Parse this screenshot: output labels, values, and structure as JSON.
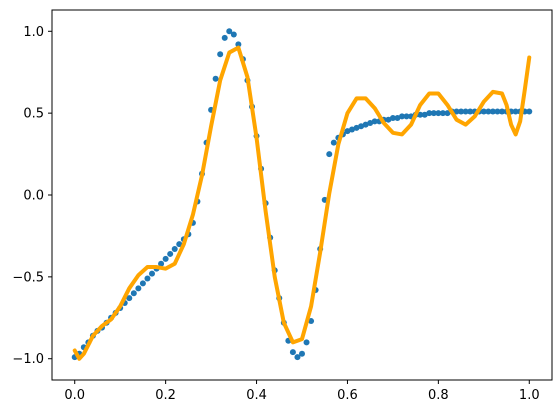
{
  "chart_data": {
    "type": "scatter",
    "title": "",
    "xlabel": "",
    "ylabel": "",
    "xlim": [
      -0.05,
      1.05
    ],
    "ylim": [
      -1.13,
      1.13
    ],
    "grid": false,
    "legend": "none",
    "x_ticks": [
      0.0,
      0.2,
      0.4,
      0.6,
      0.8,
      1.0
    ],
    "x_tick_labels": [
      "0.0",
      "0.2",
      "0.4",
      "0.6",
      "0.8",
      "1.0"
    ],
    "y_ticks": [
      -1.0,
      -0.5,
      0.0,
      0.5,
      1.0
    ],
    "y_tick_labels": [
      "−1.0",
      "−0.5",
      "0.0",
      "0.5",
      "1.0"
    ],
    "series": [
      {
        "kind": "scatter",
        "color": "#1f77b4",
        "x": [
          0.0,
          0.01,
          0.02,
          0.03,
          0.04,
          0.05,
          0.06,
          0.07,
          0.08,
          0.09,
          0.1,
          0.11,
          0.12,
          0.13,
          0.14,
          0.15,
          0.16,
          0.17,
          0.18,
          0.19,
          0.2,
          0.21,
          0.22,
          0.23,
          0.24,
          0.25,
          0.26,
          0.27,
          0.28,
          0.29,
          0.3,
          0.31,
          0.32,
          0.33,
          0.34,
          0.35,
          0.36,
          0.37,
          0.38,
          0.39,
          0.4,
          0.41,
          0.42,
          0.43,
          0.44,
          0.45,
          0.46,
          0.47,
          0.48,
          0.49,
          0.5,
          0.51,
          0.52,
          0.53,
          0.54,
          0.55,
          0.56,
          0.57,
          0.58,
          0.59,
          0.6,
          0.61,
          0.62,
          0.63,
          0.64,
          0.65,
          0.66,
          0.67,
          0.68,
          0.69,
          0.7,
          0.71,
          0.72,
          0.73,
          0.74,
          0.75,
          0.76,
          0.77,
          0.78,
          0.79,
          0.8,
          0.81,
          0.82,
          0.83,
          0.84,
          0.85,
          0.86,
          0.87,
          0.88,
          0.89,
          0.9,
          0.91,
          0.92,
          0.93,
          0.94,
          0.95,
          0.96,
          0.97,
          0.98,
          0.99,
          1.0
        ],
        "y": [
          -0.99,
          -0.97,
          -0.93,
          -0.9,
          -0.86,
          -0.83,
          -0.81,
          -0.78,
          -0.75,
          -0.72,
          -0.69,
          -0.66,
          -0.63,
          -0.6,
          -0.57,
          -0.54,
          -0.51,
          -0.48,
          -0.45,
          -0.42,
          -0.39,
          -0.36,
          -0.33,
          -0.3,
          -0.27,
          -0.24,
          -0.17,
          -0.04,
          0.13,
          0.32,
          0.52,
          0.71,
          0.86,
          0.96,
          1.0,
          0.98,
          0.92,
          0.83,
          0.7,
          0.54,
          0.36,
          0.16,
          -0.05,
          -0.26,
          -0.46,
          -0.63,
          -0.78,
          -0.89,
          -0.96,
          -0.99,
          -0.97,
          -0.9,
          -0.77,
          -0.58,
          -0.33,
          -0.03,
          0.25,
          0.32,
          0.35,
          0.37,
          0.39,
          0.4,
          0.41,
          0.42,
          0.43,
          0.44,
          0.45,
          0.45,
          0.46,
          0.46,
          0.47,
          0.47,
          0.48,
          0.48,
          0.48,
          0.49,
          0.49,
          0.49,
          0.5,
          0.5,
          0.5,
          0.5,
          0.5,
          0.51,
          0.51,
          0.51,
          0.51,
          0.51,
          0.51,
          0.51,
          0.51,
          0.51,
          0.51,
          0.51,
          0.51,
          0.51,
          0.51,
          0.51,
          0.51,
          0.51,
          0.51
        ]
      },
      {
        "kind": "line",
        "color": "#ffa500",
        "x": [
          0.0,
          0.01,
          0.02,
          0.04,
          0.06,
          0.08,
          0.1,
          0.12,
          0.14,
          0.16,
          0.18,
          0.2,
          0.22,
          0.24,
          0.26,
          0.28,
          0.3,
          0.32,
          0.34,
          0.36,
          0.38,
          0.4,
          0.42,
          0.44,
          0.46,
          0.48,
          0.5,
          0.52,
          0.54,
          0.56,
          0.58,
          0.6,
          0.62,
          0.64,
          0.66,
          0.68,
          0.7,
          0.72,
          0.74,
          0.76,
          0.78,
          0.8,
          0.82,
          0.84,
          0.86,
          0.88,
          0.9,
          0.92,
          0.94,
          0.95,
          0.96,
          0.97,
          0.98,
          0.99,
          1.0
        ],
        "y": [
          -0.95,
          -1.0,
          -0.97,
          -0.86,
          -0.8,
          -0.76,
          -0.68,
          -0.57,
          -0.49,
          -0.44,
          -0.44,
          -0.45,
          -0.42,
          -0.3,
          -0.12,
          0.12,
          0.42,
          0.7,
          0.87,
          0.9,
          0.72,
          0.35,
          -0.1,
          -0.5,
          -0.78,
          -0.9,
          -0.88,
          -0.68,
          -0.35,
          0.01,
          0.31,
          0.5,
          0.59,
          0.59,
          0.53,
          0.44,
          0.38,
          0.37,
          0.43,
          0.55,
          0.62,
          0.62,
          0.55,
          0.46,
          0.43,
          0.48,
          0.57,
          0.63,
          0.62,
          0.55,
          0.43,
          0.37,
          0.45,
          0.64,
          0.84
        ]
      }
    ]
  }
}
